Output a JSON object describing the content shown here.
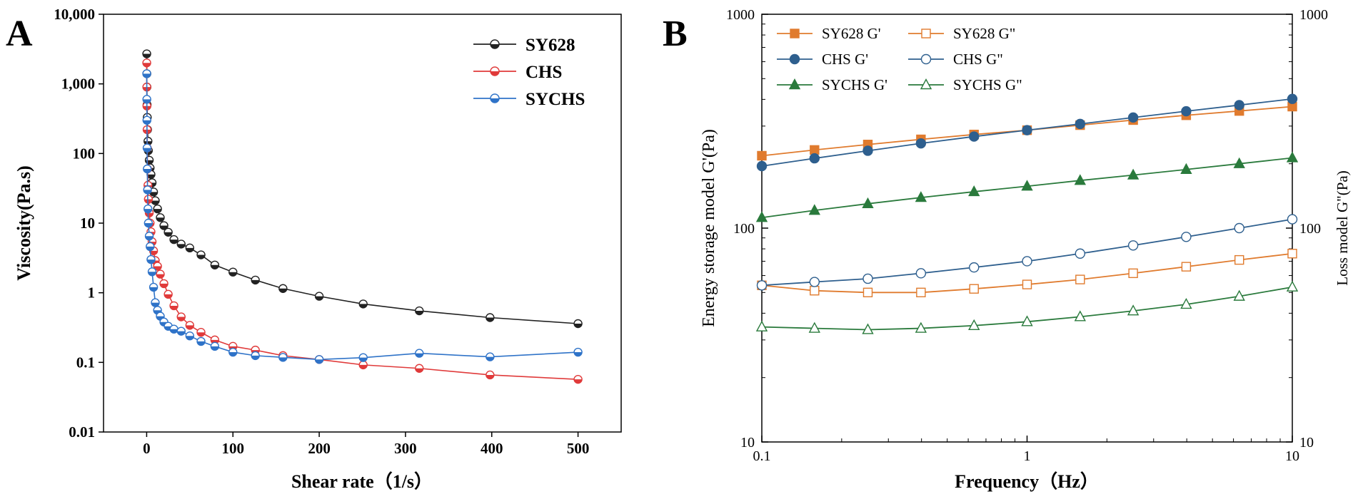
{
  "panels": {
    "a": "A",
    "b": "B"
  },
  "chart_data": [
    {
      "type": "line",
      "panel": "A",
      "xlabel": "Shear rate（1/s）",
      "ylabel": "Viscosity(Pa.s)",
      "xscale": "linear",
      "yscale": "log",
      "xlim": [
        -50,
        550
      ],
      "ylim": [
        0.01,
        10000
      ],
      "xticks": [
        0,
        100,
        200,
        300,
        400,
        500
      ],
      "xtick_labels": [
        "0",
        "100",
        "200",
        "300",
        "400",
        "500"
      ],
      "yticks": [
        0.01,
        0.1,
        1,
        10,
        100,
        1000,
        10000
      ],
      "ytick_labels": [
        "0.01",
        "0.1",
        "1",
        "10",
        "100",
        "1,000",
        "10,000"
      ],
      "legend_position": "top-right",
      "series": [
        {
          "name": "SY628",
          "color": "#222222",
          "marker": "half-circle",
          "x": [
            0.1,
            0.2,
            0.3,
            0.5,
            0.7,
            1,
            1.5,
            2,
            3,
            4,
            5,
            6.3,
            8,
            10,
            12.6,
            15.8,
            20,
            25,
            31.6,
            40,
            50,
            63,
            79,
            100,
            126,
            158,
            200,
            251,
            316,
            398,
            500
          ],
          "y": [
            2700,
            1400,
            900,
            500,
            330,
            220,
            150,
            110,
            80,
            62,
            50,
            38,
            28,
            21,
            16,
            12,
            9.2,
            7.4,
            5.8,
            5.0,
            4.4,
            3.5,
            2.5,
            1.98,
            1.52,
            1.15,
            0.89,
            0.69,
            0.55,
            0.44,
            0.36
          ]
        },
        {
          "name": "CHS",
          "color": "#e03a3a",
          "marker": "half-circle",
          "x": [
            0.1,
            0.2,
            0.3,
            0.5,
            0.7,
            1,
            1.5,
            2,
            3,
            4,
            5,
            6.3,
            8,
            10,
            12.6,
            15.8,
            20,
            25,
            31.6,
            40,
            50,
            63,
            79,
            100,
            126,
            158,
            200,
            251,
            316,
            398,
            500
          ],
          "y": [
            2000,
            900,
            480,
            220,
            120,
            60,
            35,
            22,
            14,
            10,
            7.5,
            5.4,
            4.0,
            2.9,
            2.4,
            1.85,
            1.35,
            0.95,
            0.65,
            0.45,
            0.34,
            0.27,
            0.21,
            0.17,
            0.15,
            0.125,
            0.11,
            0.092,
            0.082,
            0.066,
            0.057
          ]
        },
        {
          "name": "SYCHS",
          "color": "#2f73c8",
          "marker": "half-circle",
          "x": [
            0.1,
            0.2,
            0.3,
            0.5,
            0.7,
            1,
            1.5,
            2,
            3,
            4,
            5,
            6.3,
            8,
            10,
            12.6,
            15.8,
            20,
            25,
            31.6,
            40,
            50,
            63,
            79,
            100,
            126,
            158,
            200,
            251,
            316,
            398,
            500
          ],
          "y": [
            1400,
            600,
            300,
            120,
            60,
            30,
            16,
            10,
            6.5,
            4.6,
            3.0,
            2.0,
            1.2,
            0.72,
            0.56,
            0.46,
            0.38,
            0.33,
            0.3,
            0.28,
            0.24,
            0.2,
            0.17,
            0.14,
            0.125,
            0.118,
            0.11,
            0.117,
            0.135,
            0.12,
            0.14
          ]
        }
      ]
    },
    {
      "type": "line",
      "panel": "B",
      "xlabel": "Frequency（Hz）",
      "ylabel_left": "Energy storage model G'(Pa)",
      "ylabel_right": "Loss model G\"(Pa)",
      "xscale": "log",
      "yscale": "log",
      "xlim": [
        0.1,
        10
      ],
      "ylim": [
        10,
        1000
      ],
      "xticks": [
        0.1,
        1,
        10
      ],
      "xtick_labels": [
        "0.1",
        "1",
        "10"
      ],
      "yticks": [
        10,
        100,
        1000
      ],
      "ytick_labels": [
        "10",
        "100",
        "1000"
      ],
      "legend_position": "top-left",
      "series": [
        {
          "name": "SY628 G'",
          "color": "#e07b2e",
          "marker": "filled-square",
          "x": [
            0.1,
            0.158,
            0.251,
            0.398,
            0.631,
            1,
            1.585,
            2.512,
            3.981,
            6.31,
            10
          ],
          "y": [
            218,
            232,
            246,
            260,
            274,
            287,
            303,
            320,
            337,
            353,
            370
          ]
        },
        {
          "name": "CHS G'",
          "color": "#2e5f8e",
          "marker": "filled-circle",
          "x": [
            0.1,
            0.158,
            0.251,
            0.398,
            0.631,
            1,
            1.585,
            2.512,
            3.981,
            6.31,
            10
          ],
          "y": [
            195,
            212,
            230,
            249,
            268,
            287,
            307,
            329,
            352,
            376,
            402
          ]
        },
        {
          "name": "SYCHS G'",
          "color": "#2a7a3c",
          "marker": "filled-triangle",
          "x": [
            0.1,
            0.158,
            0.251,
            0.398,
            0.631,
            1,
            1.585,
            2.512,
            3.981,
            6.31,
            10
          ],
          "y": [
            112,
            121,
            130,
            139,
            148,
            157,
            167,
            177,
            188,
            200,
            213
          ]
        },
        {
          "name": "SY628 G\"",
          "color": "#e07b2e",
          "marker": "open-square",
          "x": [
            0.1,
            0.158,
            0.251,
            0.398,
            0.631,
            1,
            1.585,
            2.512,
            3.981,
            6.31,
            10
          ],
          "y": [
            54,
            51,
            50,
            50,
            52,
            54.5,
            57.5,
            61.5,
            66,
            71,
            76
          ]
        },
        {
          "name": "CHS G\"",
          "color": "#2e5f8e",
          "marker": "open-circle",
          "x": [
            0.1,
            0.158,
            0.251,
            0.398,
            0.631,
            1,
            1.585,
            2.512,
            3.981,
            6.31,
            10
          ],
          "y": [
            54,
            56,
            58,
            61.5,
            65.5,
            70,
            76,
            83,
            91,
            100,
            110
          ]
        },
        {
          "name": "SYCHS G\"",
          "color": "#2a7a3c",
          "marker": "open-triangle",
          "x": [
            0.1,
            0.158,
            0.251,
            0.398,
            0.631,
            1,
            1.585,
            2.512,
            3.981,
            6.31,
            10
          ],
          "y": [
            34.5,
            34,
            33.5,
            34,
            35,
            36.5,
            38.5,
            41,
            44,
            48,
            53
          ]
        }
      ]
    }
  ]
}
